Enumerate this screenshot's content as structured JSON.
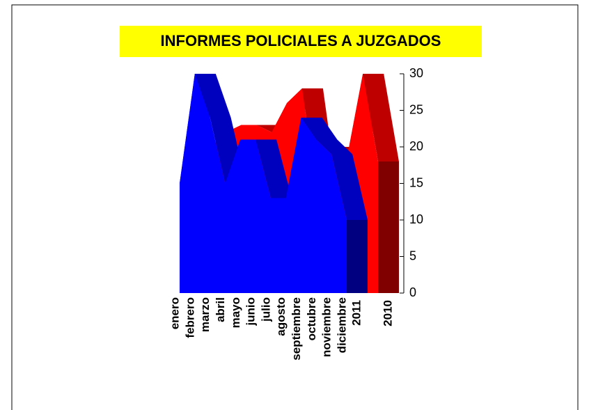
{
  "chart_data": {
    "type": "area3d",
    "title": "INFORMES POLICIALES A JUZGADOS",
    "categories": [
      "enero",
      "febrero",
      "marzo",
      "abril",
      "mayo",
      "junio",
      "julio",
      "agosto",
      "septiembre",
      "octubre",
      "noviembre",
      "diciembre"
    ],
    "series": [
      {
        "name": "2010",
        "color": "#ff0000",
        "values": [
          20,
          22,
          23,
          23,
          22,
          26,
          28,
          13,
          20,
          19,
          30,
          18
        ]
      },
      {
        "name": "2011",
        "color": "#0000ff",
        "values": [
          15,
          30,
          24,
          15,
          21,
          21,
          13,
          13,
          24,
          21,
          19,
          10
        ]
      }
    ],
    "ylim": [
      0,
      30
    ],
    "yticks": [
      0,
      5,
      10,
      15,
      20,
      25,
      30
    ]
  }
}
